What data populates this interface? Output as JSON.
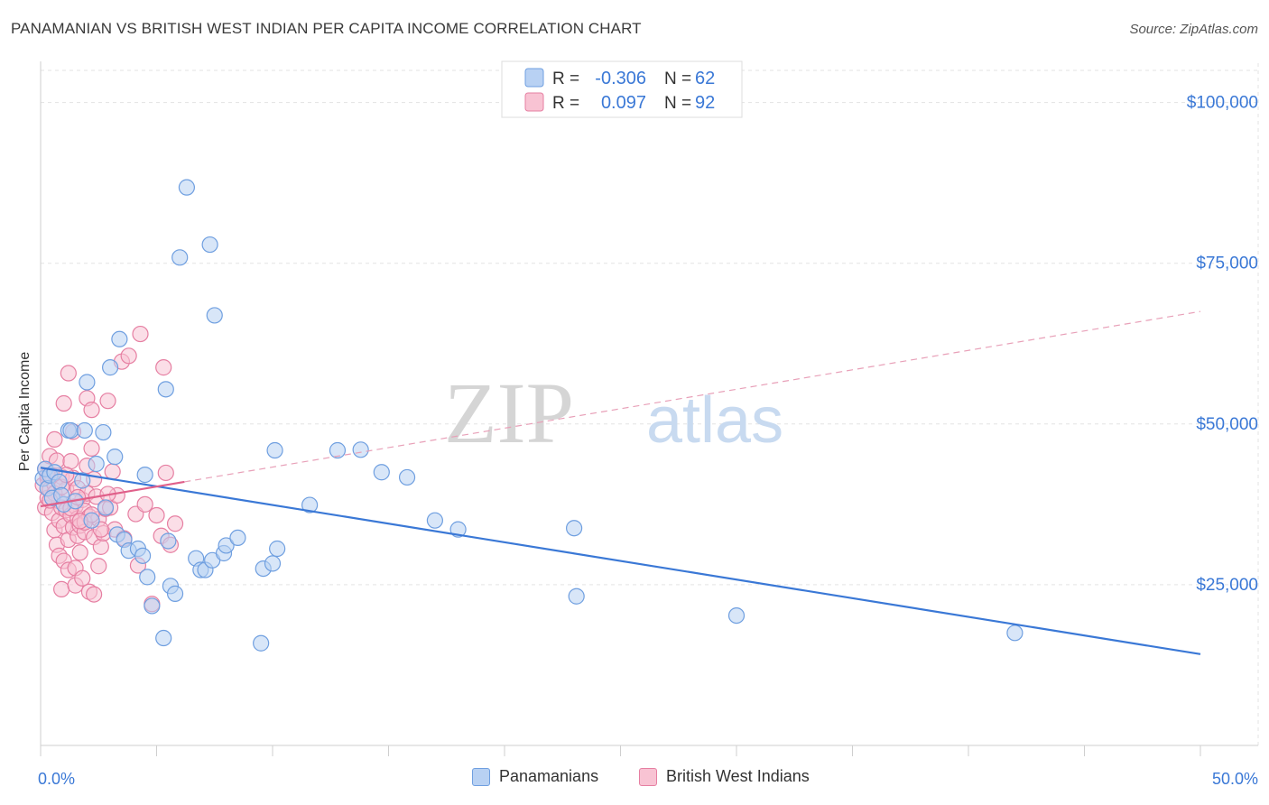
{
  "title": "PANAMANIAN VS BRITISH WEST INDIAN PER CAPITA INCOME CORRELATION CHART",
  "source": "Source: ZipAtlas.com",
  "watermark": {
    "zip": "ZIP",
    "atlas": "atlas"
  },
  "legend_top": [
    {
      "r_label": "R =",
      "r_value": "-0.306",
      "n_label": "N =",
      "n_value": "62",
      "color": "#6f9fe0",
      "fill": "#b8d1f3"
    },
    {
      "r_label": "R =",
      "r_value": "0.097",
      "n_label": "N =",
      "n_value": "92",
      "color": "#e67fa2",
      "fill": "#f8c3d3"
    }
  ],
  "legend_bottom": [
    {
      "label": "Panamanians",
      "color": "#6f9fe0",
      "fill": "#b8d1f3"
    },
    {
      "label": "British West Indians",
      "color": "#e67fa2",
      "fill": "#f8c3d3"
    }
  ],
  "chart_data": {
    "type": "scatter",
    "title": "PANAMANIAN VS BRITISH WEST INDIAN PER CAPITA INCOME CORRELATION CHART",
    "xlabel": "",
    "ylabel": "Per Capita Income",
    "xlim": [
      0,
      50
    ],
    "ylim": [
      0,
      105000
    ],
    "x_tick_labels": {
      "left": "0.0%",
      "right": "50.0%"
    },
    "y_ticks": [
      {
        "value": 25000,
        "label": "$25,000"
      },
      {
        "value": 50000,
        "label": "$50,000"
      },
      {
        "value": 75000,
        "label": "$75,000"
      },
      {
        "value": 100000,
        "label": "$100,000"
      }
    ],
    "series": [
      {
        "name": "Panamanians",
        "color": "#3a78d6",
        "fill": "#b8d1f3",
        "stroke": "#6f9fe0",
        "trend": {
          "x": [
            0,
            50
          ],
          "y": [
            43200,
            14200
          ],
          "style": "solid"
        },
        "points": [
          [
            0.1,
            41500
          ],
          [
            0.2,
            43000
          ],
          [
            0.3,
            40000
          ],
          [
            0.4,
            42000
          ],
          [
            0.5,
            38500
          ],
          [
            0.6,
            42500
          ],
          [
            0.8,
            41000
          ],
          [
            1.0,
            37500
          ],
          [
            1.2,
            49000
          ],
          [
            1.3,
            49000
          ],
          [
            1.5,
            38000
          ],
          [
            1.8,
            41200
          ],
          [
            1.9,
            49000
          ],
          [
            2.0,
            56500
          ],
          [
            2.2,
            35000
          ],
          [
            2.4,
            43800
          ],
          [
            2.7,
            48700
          ],
          [
            2.8,
            37000
          ],
          [
            3.0,
            58800
          ],
          [
            3.2,
            44900
          ],
          [
            3.3,
            32800
          ],
          [
            3.4,
            63200
          ],
          [
            3.6,
            32000
          ],
          [
            3.8,
            30300
          ],
          [
            4.2,
            30600
          ],
          [
            4.4,
            29500
          ],
          [
            4.5,
            42100
          ],
          [
            4.6,
            26200
          ],
          [
            4.8,
            21700
          ],
          [
            5.3,
            16700
          ],
          [
            5.4,
            55400
          ],
          [
            5.5,
            31800
          ],
          [
            5.6,
            24800
          ],
          [
            5.8,
            23600
          ],
          [
            6.0,
            75900
          ],
          [
            6.3,
            86800
          ],
          [
            6.7,
            29100
          ],
          [
            6.9,
            27300
          ],
          [
            7.1,
            27300
          ],
          [
            7.3,
            77900
          ],
          [
            7.4,
            28800
          ],
          [
            7.5,
            66900
          ],
          [
            7.9,
            29900
          ],
          [
            8.0,
            31100
          ],
          [
            8.5,
            32300
          ],
          [
            9.5,
            15900
          ],
          [
            9.6,
            27500
          ],
          [
            10.0,
            28300
          ],
          [
            10.1,
            45900
          ],
          [
            10.2,
            30600
          ],
          [
            11.6,
            37400
          ],
          [
            12.8,
            45900
          ],
          [
            13.8,
            46000
          ],
          [
            14.7,
            42500
          ],
          [
            15.8,
            41700
          ],
          [
            17.0,
            35000
          ],
          [
            18.0,
            33600
          ],
          [
            23.0,
            33800
          ],
          [
            23.1,
            23200
          ],
          [
            30.0,
            20200
          ],
          [
            42.0,
            17500
          ],
          [
            0.9,
            38900
          ]
        ]
      },
      {
        "name": "British West Indians",
        "color": "#e0608a",
        "fill": "#f8c3d3",
        "stroke": "#e67fa2",
        "trend": {
          "x": [
            0,
            6.2
          ],
          "y": [
            37200,
            41000
          ],
          "style": "solid",
          "extended": {
            "x": [
              6.2,
              50
            ],
            "y": [
              41000,
              67500
            ],
            "style": "dashed"
          }
        },
        "points": [
          [
            0.1,
            40500
          ],
          [
            0.2,
            37000
          ],
          [
            0.2,
            43000
          ],
          [
            0.3,
            41500
          ],
          [
            0.3,
            38500
          ],
          [
            0.4,
            45000
          ],
          [
            0.4,
            39800
          ],
          [
            0.5,
            42000
          ],
          [
            0.5,
            36200
          ],
          [
            0.6,
            47600
          ],
          [
            0.6,
            33500
          ],
          [
            0.6,
            40600
          ],
          [
            0.7,
            31200
          ],
          [
            0.7,
            44300
          ],
          [
            0.8,
            29500
          ],
          [
            0.8,
            38000
          ],
          [
            0.8,
            35000
          ],
          [
            0.9,
            24300
          ],
          [
            0.9,
            41800
          ],
          [
            0.9,
            37000
          ],
          [
            1.0,
            53200
          ],
          [
            1.0,
            34100
          ],
          [
            1.0,
            28700
          ],
          [
            1.1,
            36600
          ],
          [
            1.1,
            39800
          ],
          [
            1.2,
            57900
          ],
          [
            1.2,
            32000
          ],
          [
            1.2,
            27300
          ],
          [
            1.3,
            44200
          ],
          [
            1.3,
            35800
          ],
          [
            1.4,
            48800
          ],
          [
            1.4,
            41600
          ],
          [
            1.4,
            33900
          ],
          [
            1.5,
            27600
          ],
          [
            1.5,
            37200
          ],
          [
            1.5,
            24900
          ],
          [
            1.6,
            40000
          ],
          [
            1.6,
            35300
          ],
          [
            1.6,
            32600
          ],
          [
            1.7,
            34200
          ],
          [
            1.7,
            30000
          ],
          [
            1.8,
            38200
          ],
          [
            1.8,
            26000
          ],
          [
            1.9,
            36500
          ],
          [
            1.9,
            33200
          ],
          [
            2.0,
            54000
          ],
          [
            2.0,
            43500
          ],
          [
            2.0,
            39200
          ],
          [
            2.1,
            35600
          ],
          [
            2.1,
            23900
          ],
          [
            2.2,
            52200
          ],
          [
            2.2,
            46200
          ],
          [
            2.3,
            41400
          ],
          [
            2.3,
            32400
          ],
          [
            2.3,
            23500
          ],
          [
            2.4,
            38700
          ],
          [
            2.5,
            35200
          ],
          [
            2.5,
            27900
          ],
          [
            2.6,
            30900
          ],
          [
            2.7,
            33000
          ],
          [
            2.8,
            36800
          ],
          [
            2.9,
            53600
          ],
          [
            3.0,
            37000
          ],
          [
            3.1,
            42600
          ],
          [
            3.2,
            33600
          ],
          [
            3.3,
            38900
          ],
          [
            3.5,
            59700
          ],
          [
            3.6,
            32200
          ],
          [
            3.8,
            60600
          ],
          [
            4.1,
            36000
          ],
          [
            4.2,
            28000
          ],
          [
            4.3,
            64000
          ],
          [
            4.5,
            37500
          ],
          [
            4.8,
            22000
          ],
          [
            5.0,
            35800
          ],
          [
            5.2,
            32600
          ],
          [
            5.3,
            58800
          ],
          [
            5.4,
            42400
          ],
          [
            5.6,
            31200
          ],
          [
            5.8,
            34500
          ],
          [
            0.3,
            42000
          ],
          [
            0.6,
            39200
          ],
          [
            0.9,
            40200
          ],
          [
            1.1,
            42100
          ],
          [
            1.3,
            36900
          ],
          [
            1.6,
            38600
          ],
          [
            1.9,
            34700
          ],
          [
            2.2,
            35900
          ],
          [
            2.6,
            33600
          ],
          [
            2.9,
            39100
          ],
          [
            0.4,
            38100
          ],
          [
            1.7,
            34900
          ]
        ]
      }
    ]
  }
}
